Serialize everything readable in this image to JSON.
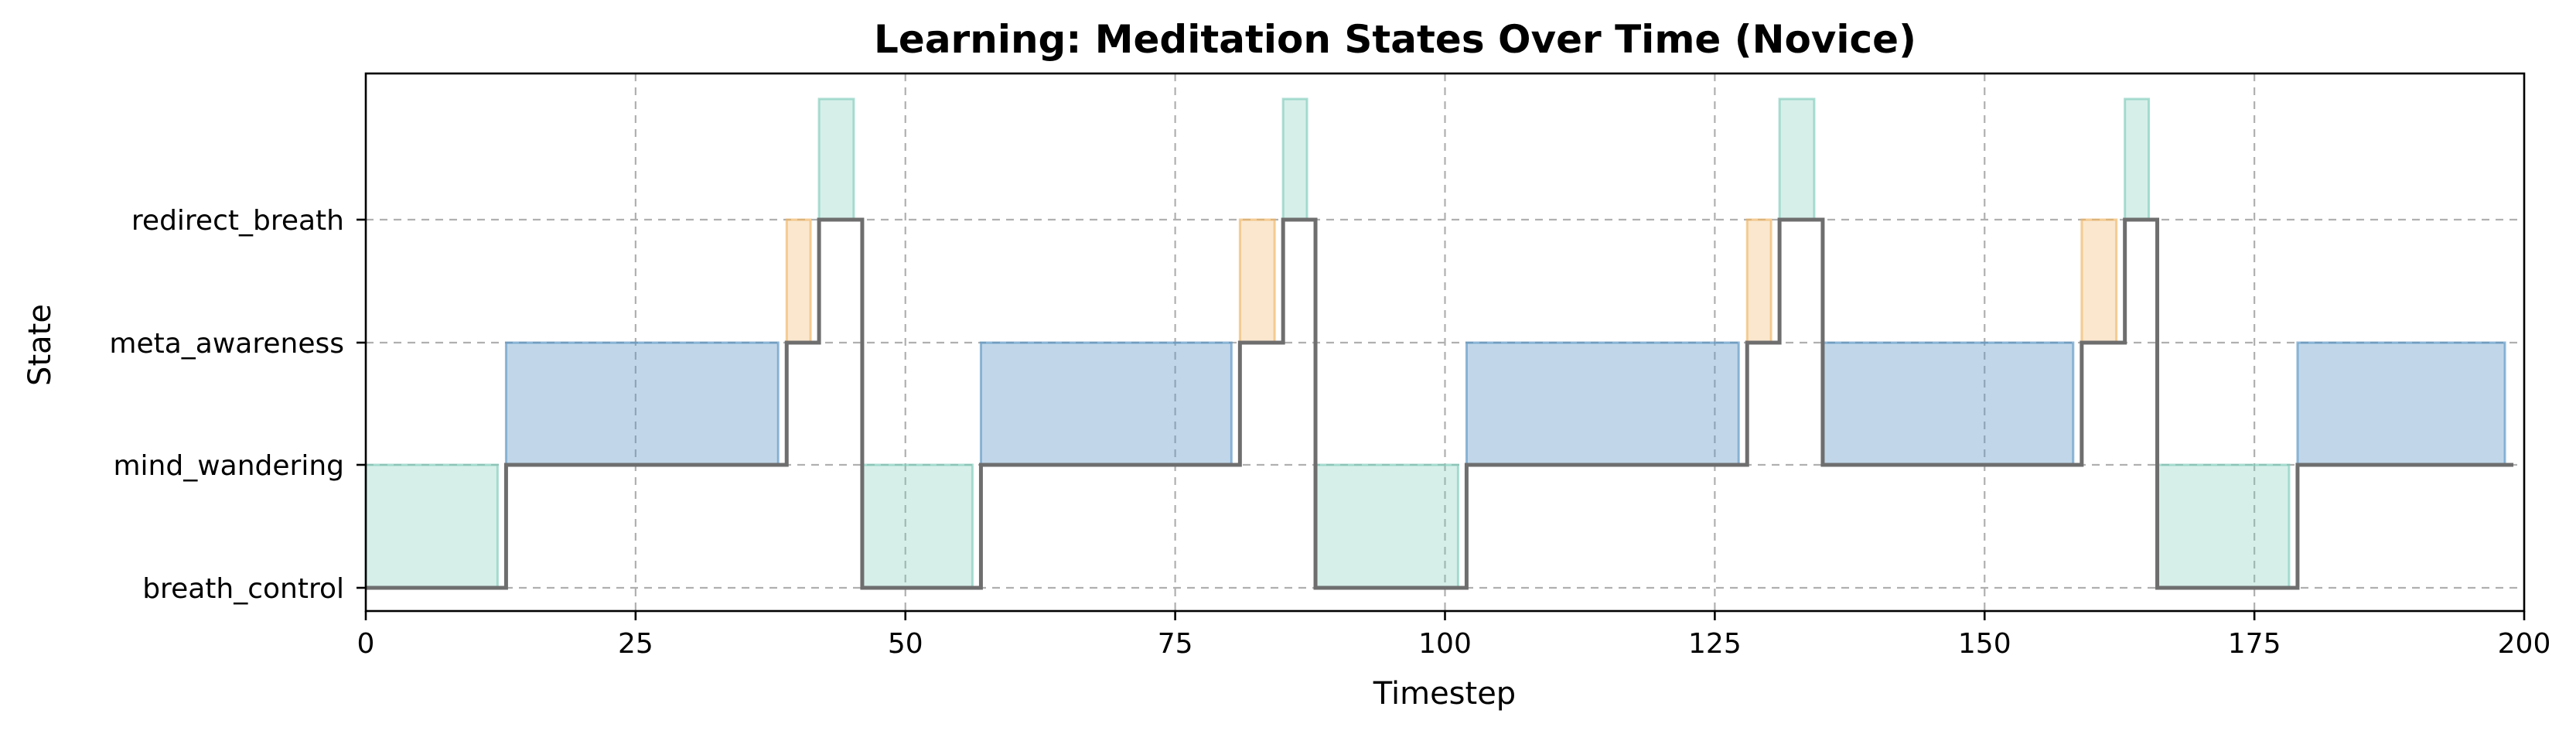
{
  "chart_data": {
    "type": "step",
    "title": "Learning: Meditation States Over Time (Novice)",
    "xlabel": "Timestep",
    "ylabel": "State",
    "xlim": [
      0,
      200
    ],
    "x_ticks": [
      0,
      25,
      50,
      75,
      100,
      125,
      150,
      175,
      200
    ],
    "y_categories": [
      "breath_control",
      "mind_wandering",
      "meta_awareness",
      "redirect_breath"
    ],
    "grid": true,
    "colors": {
      "breath_control": "#7fcdbb",
      "mind_wandering": "#5b95c5",
      "meta_awareness": "#f0b566",
      "redirect_breath": "#7fcdbb",
      "state_line": "#6e6e6e"
    },
    "segments": [
      {
        "state": "breath_control",
        "start": 0,
        "end": 13
      },
      {
        "state": "mind_wandering",
        "start": 13,
        "end": 39
      },
      {
        "state": "meta_awareness",
        "start": 39,
        "end": 42
      },
      {
        "state": "redirect_breath",
        "start": 42,
        "end": 46
      },
      {
        "state": "breath_control",
        "start": 46,
        "end": 57
      },
      {
        "state": "mind_wandering",
        "start": 57,
        "end": 81
      },
      {
        "state": "meta_awareness",
        "start": 81,
        "end": 85
      },
      {
        "state": "redirect_breath",
        "start": 85,
        "end": 88
      },
      {
        "state": "breath_control",
        "start": 88,
        "end": 102
      },
      {
        "state": "mind_wandering",
        "start": 102,
        "end": 128
      },
      {
        "state": "meta_awareness",
        "start": 128,
        "end": 131
      },
      {
        "state": "redirect_breath",
        "start": 131,
        "end": 135
      },
      {
        "state": "mind_wandering",
        "start": 135,
        "end": 159
      },
      {
        "state": "meta_awareness",
        "start": 159,
        "end": 163
      },
      {
        "state": "redirect_breath",
        "start": 163,
        "end": 166
      },
      {
        "state": "breath_control",
        "start": 166,
        "end": 179
      },
      {
        "state": "mind_wandering",
        "start": 179,
        "end": 199
      }
    ]
  }
}
